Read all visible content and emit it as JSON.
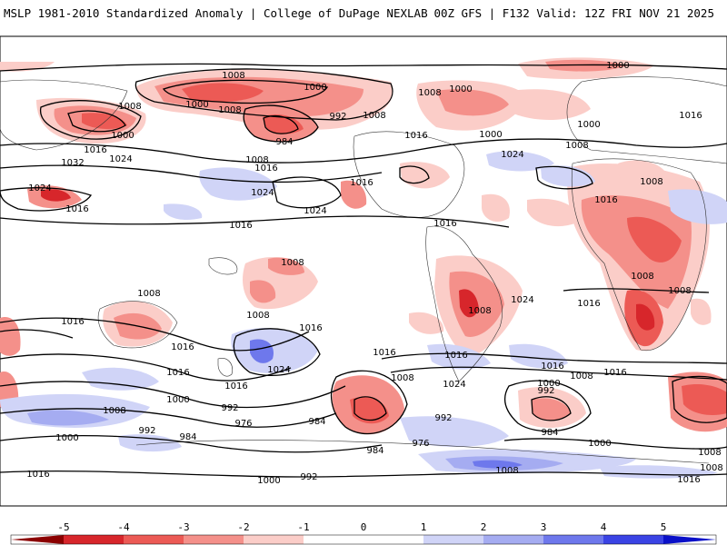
{
  "header": {
    "left_title": "MSLP 1981-2010 Standardized Anomaly | College of DuPage NEXLAB",
    "right_title": "00Z GFS | F132 Valid: 12Z FRI NOV 21 2025"
  },
  "colors": {
    "neg5": "#8b0000",
    "neg4": "#d7262b",
    "neg3": "#ec5a55",
    "neg2": "#f4908a",
    "neg1": "#fbcdc8",
    "pos1": "#d0d4f7",
    "pos2": "#a5acf1",
    "pos3": "#6e78ec",
    "pos4": "#3a43e4",
    "pos5": "#0a10c8",
    "land": "#ffffff",
    "contour": "#000000"
  },
  "colorbar": {
    "ticks": [
      "-5",
      "-4",
      "-3",
      "-2",
      "-1",
      "0",
      "1",
      "2",
      "3",
      "4",
      "5"
    ]
  },
  "isobar_labels": [
    "1008",
    "1000",
    "1008",
    "1000",
    "1008",
    "1000",
    "1008",
    "1000",
    "992",
    "1008",
    "1016",
    "1000",
    "984",
    "1016",
    "1016",
    "1000",
    "1008",
    "1000",
    "1016",
    "1032",
    "1024",
    "1016",
    "1024",
    "1024",
    "1024",
    "1008",
    "1024",
    "1016",
    "1016",
    "1016",
    "1024",
    "1016",
    "1008",
    "1016",
    "1016",
    "1008",
    "1008",
    "1008",
    "1008",
    "1008",
    "1016",
    "1008",
    "1016",
    "1016",
    "1016",
    "1016",
    "1016",
    "1024",
    "1024",
    "1016",
    "1016",
    "1000",
    "1008",
    "1008",
    "1008",
    "1000",
    "992",
    "992",
    "1000",
    "992",
    "976",
    "984",
    "992",
    "984",
    "976",
    "984",
    "1008",
    "1016",
    "1000",
    "992",
    "1008",
    "984",
    "1000",
    "1008",
    "1016"
  ]
}
